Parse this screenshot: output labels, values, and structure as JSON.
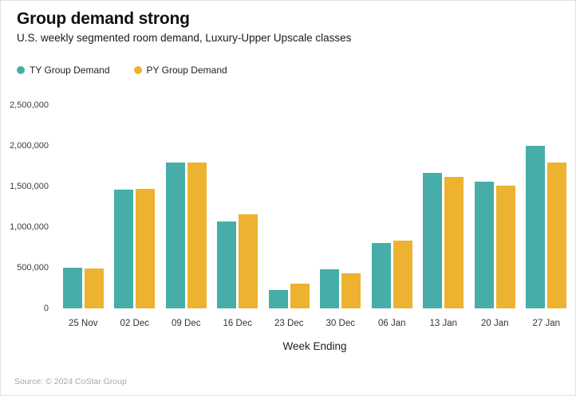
{
  "header": {
    "title": "Group demand strong",
    "subtitle": "U.S. weekly segmented room demand, Luxury-Upper Upscale classes"
  },
  "legend": [
    {
      "label": "TY Group Demand",
      "color": "#46ADA8"
    },
    {
      "label": "PY Group Demand",
      "color": "#EDB22F"
    }
  ],
  "chart_data": {
    "type": "bar",
    "title": "Group demand strong",
    "subtitle": "U.S. weekly segmented room demand, Luxury-Upper Upscale classes",
    "categories": [
      "25 Nov",
      "02 Dec",
      "09 Dec",
      "16 Dec",
      "23 Dec",
      "30 Dec",
      "06 Jan",
      "13 Jan",
      "20 Jan",
      "27 Jan"
    ],
    "series": [
      {
        "name": "TY Group Demand",
        "color": "#46ADA8",
        "values": [
          500000,
          1460000,
          1795000,
          1065000,
          230000,
          480000,
          805000,
          1670000,
          1555000,
          2000000
        ]
      },
      {
        "name": "PY Group Demand",
        "color": "#EDB22F",
        "values": [
          495000,
          1470000,
          1790000,
          1160000,
          300000,
          430000,
          835000,
          1620000,
          1510000,
          1795000
        ]
      }
    ],
    "xlabel": "Week Ending",
    "ylabel": "",
    "ylim": [
      0,
      2500000
    ],
    "yticks": [
      0,
      500000,
      1000000,
      1500000,
      2000000,
      2500000
    ],
    "ytick_labels": [
      "0",
      "500,000",
      "1,000,000",
      "1,500,000",
      "2,000,000",
      "2,500,000"
    ],
    "grid": false,
    "legend_position": "top-left"
  },
  "footer": {
    "source": "Source: © 2024 CoStar Group"
  }
}
